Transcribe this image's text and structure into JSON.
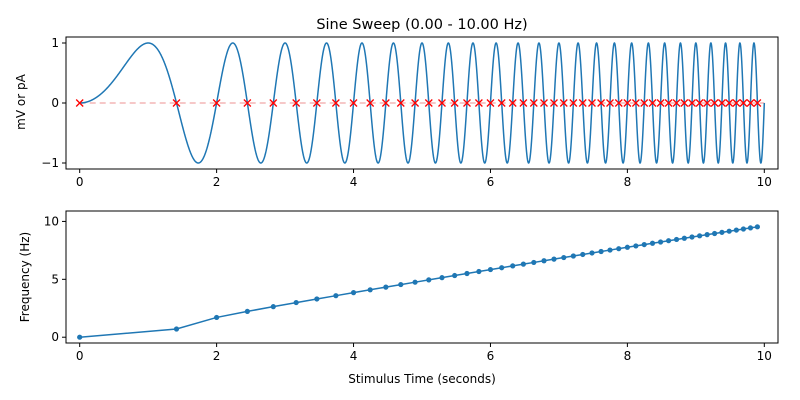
{
  "chart_data": [
    {
      "type": "line",
      "title": "Sine Sweep (0.00 - 10.00 Hz)",
      "xlabel": "",
      "ylabel": "mV or pA",
      "xlim": [
        -0.2,
        10.2
      ],
      "ylim": [
        -1.1,
        1.1
      ],
      "xticks": [
        "0",
        "2",
        "4",
        "6",
        "8",
        "10"
      ],
      "yticks": [
        "−1",
        "0",
        "1"
      ],
      "sweep": {
        "f_start": 0.0,
        "f_end": 10.0,
        "duration": 10.0,
        "amplitude": 1.0
      },
      "zero_line": {
        "y": 0,
        "style": "dashed",
        "color": "#f4b6b6"
      },
      "crossings": [
        0.0,
        1.414,
        2.0,
        2.449,
        2.828,
        3.162,
        3.464,
        3.742,
        4.0,
        4.243,
        4.472,
        4.69,
        4.899,
        5.099,
        5.292,
        5.477,
        5.657,
        5.831,
        6.0,
        6.164,
        6.325,
        6.481,
        6.633,
        6.782,
        6.928,
        7.071,
        7.211,
        7.348,
        7.483,
        7.616,
        7.746,
        7.874,
        8.0,
        8.124,
        8.246,
        8.367,
        8.485,
        8.602,
        8.718,
        8.832,
        8.944,
        9.055,
        9.165,
        9.274,
        9.381,
        9.487,
        9.592,
        9.695,
        9.798,
        9.899
      ],
      "series_color": "#1f77b4",
      "marker_color": "#ff0000"
    },
    {
      "type": "line",
      "title": "",
      "xlabel": "Stimulus Time (seconds)",
      "ylabel": "Frequency (Hz)",
      "xlim": [
        -0.2,
        10.2
      ],
      "ylim": [
        -0.5,
        10.9
      ],
      "xticks": [
        "0",
        "2",
        "4",
        "6",
        "8",
        "10"
      ],
      "yticks": [
        "0",
        "5",
        "10"
      ],
      "x": [
        0.0,
        1.414,
        2.0,
        2.449,
        2.828,
        3.162,
        3.464,
        3.742,
        4.0,
        4.243,
        4.472,
        4.69,
        4.899,
        5.099,
        5.292,
        5.477,
        5.657,
        5.831,
        6.0,
        6.164,
        6.325,
        6.481,
        6.633,
        6.782,
        6.928,
        7.071,
        7.211,
        7.348,
        7.483,
        7.616,
        7.746,
        7.874,
        8.0,
        8.124,
        8.246,
        8.367,
        8.485,
        8.602,
        8.718,
        8.832,
        8.944,
        9.055,
        9.165,
        9.274,
        9.381,
        9.487,
        9.592,
        9.695,
        9.798,
        9.899
      ],
      "y": [
        0.0,
        0.707,
        1.707,
        2.229,
        2.639,
        2.991,
        3.303,
        3.587,
        3.85,
        4.095,
        4.326,
        4.545,
        4.753,
        4.952,
        5.143,
        5.327,
        5.504,
        5.675,
        5.841,
        6.002,
        6.158,
        6.31,
        6.458,
        6.602,
        6.743,
        6.88,
        7.015,
        7.146,
        7.275,
        7.402,
        7.526,
        7.647,
        7.767,
        7.884,
        7.999,
        8.113,
        8.224,
        8.334,
        8.442,
        8.548,
        8.653,
        8.756,
        8.858,
        8.958,
        9.057,
        9.155,
        9.251,
        9.346,
        9.44,
        9.533
      ],
      "series_color": "#1f77b4"
    }
  ]
}
